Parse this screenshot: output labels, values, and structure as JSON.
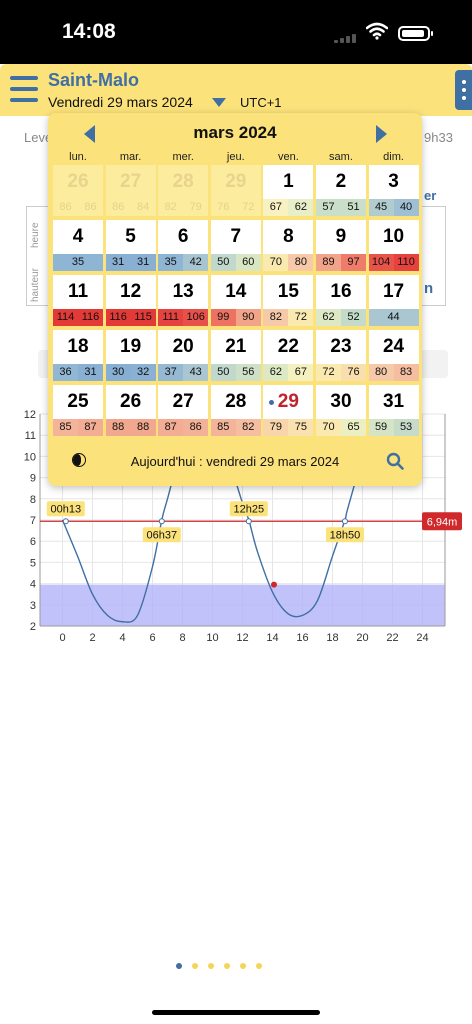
{
  "status": {
    "time": "14:08"
  },
  "header": {
    "city": "Saint-Malo",
    "date": "Vendredi 29 mars 2024",
    "utc": "UTC+1"
  },
  "background": {
    "lever": "Leve",
    "right_time": "9h33",
    "left_side_top": "heure",
    "left_side_bottom": "hauteur",
    "right_letter_top": "er",
    "right_letter_bottom": "n"
  },
  "calendar": {
    "month": "mars 2024",
    "weekdays": [
      "lun.",
      "mar.",
      "mer.",
      "jeu.",
      "ven.",
      "sam.",
      "dim."
    ],
    "footer": "Aujourd'hui : vendredi 29 mars 2024",
    "days": [
      {
        "n": "26",
        "c": [
          "86",
          "86"
        ],
        "cols": [
          "#fcec9e",
          "#fcec9e"
        ],
        "faded": true
      },
      {
        "n": "27",
        "c": [
          "86",
          "84"
        ],
        "cols": [
          "#fcec9e",
          "#fcec9e"
        ],
        "faded": true
      },
      {
        "n": "28",
        "c": [
          "82",
          "79"
        ],
        "cols": [
          "#fcec9e",
          "#fcec9e"
        ],
        "faded": true
      },
      {
        "n": "29",
        "c": [
          "76",
          "72"
        ],
        "cols": [
          "#fcec9e",
          "#fcec9e"
        ],
        "faded": true
      },
      {
        "n": "1",
        "c": [
          "67",
          "62"
        ],
        "cols": [
          "#f8f1c2",
          "#e8eec8"
        ]
      },
      {
        "n": "2",
        "c": [
          "57",
          "51"
        ],
        "cols": [
          "#c9dfc9",
          "#c9dfc9"
        ]
      },
      {
        "n": "3",
        "c": [
          "45",
          "40"
        ],
        "cols": [
          "#b1cccf",
          "#9fc0d4"
        ]
      },
      {
        "n": "4",
        "c": [
          "35",
          ""
        ],
        "cols": [
          "#8fb5d5",
          "#8fb5d5"
        ],
        "single": true
      },
      {
        "n": "5",
        "c": [
          "31",
          "31"
        ],
        "cols": [
          "#89afd3",
          "#89afd3"
        ]
      },
      {
        "n": "6",
        "c": [
          "35",
          "42"
        ],
        "cols": [
          "#8fb5d5",
          "#a7c5d1"
        ]
      },
      {
        "n": "7",
        "c": [
          "50",
          "60"
        ],
        "cols": [
          "#c1d9cc",
          "#d9e6c4"
        ]
      },
      {
        "n": "8",
        "c": [
          "70",
          "80"
        ],
        "cols": [
          "#fbeab0",
          "#f6c9a8"
        ]
      },
      {
        "n": "9",
        "c": [
          "89",
          "97"
        ],
        "cols": [
          "#f2a48a",
          "#ef7c6a"
        ]
      },
      {
        "n": "10",
        "c": [
          "104",
          "110"
        ],
        "cols": [
          "#e9544a",
          "#e6423f"
        ]
      },
      {
        "n": "11",
        "c": [
          "114",
          "116"
        ],
        "cols": [
          "#e33a38",
          "#e33a38"
        ]
      },
      {
        "n": "12",
        "c": [
          "116",
          "115"
        ],
        "cols": [
          "#e33a38",
          "#e33a38"
        ]
      },
      {
        "n": "13",
        "c": [
          "111",
          "106"
        ],
        "cols": [
          "#e6423f",
          "#e8504a"
        ]
      },
      {
        "n": "14",
        "c": [
          "99",
          "90"
        ],
        "cols": [
          "#ee7262",
          "#f2a48a"
        ]
      },
      {
        "n": "15",
        "c": [
          "82",
          "72"
        ],
        "cols": [
          "#f6c9a8",
          "#fbeab0"
        ]
      },
      {
        "n": "16",
        "c": [
          "62",
          "52"
        ],
        "cols": [
          "#dde8c4",
          "#c4dbca"
        ]
      },
      {
        "n": "17",
        "c": [
          "44",
          ""
        ],
        "cols": [
          "#aac7d1",
          "#aac7d1"
        ],
        "single": true
      },
      {
        "n": "18",
        "c": [
          "36",
          "31"
        ],
        "cols": [
          "#92b7d4",
          "#89afd3"
        ]
      },
      {
        "n": "19",
        "c": [
          "30",
          "32"
        ],
        "cols": [
          "#87aed3",
          "#8ab1d3"
        ]
      },
      {
        "n": "20",
        "c": [
          "37",
          "43"
        ],
        "cols": [
          "#96b9d3",
          "#a9c6d1"
        ]
      },
      {
        "n": "21",
        "c": [
          "50",
          "56"
        ],
        "cols": [
          "#c1d9cc",
          "#cfe0c8"
        ]
      },
      {
        "n": "22",
        "c": [
          "62",
          "67"
        ],
        "cols": [
          "#dde8c4",
          "#f4f0c0"
        ]
      },
      {
        "n": "23",
        "c": [
          "72",
          "76"
        ],
        "cols": [
          "#fbeab0",
          "#f9dfae"
        ]
      },
      {
        "n": "24",
        "c": [
          "80",
          "83"
        ],
        "cols": [
          "#f6c9a8",
          "#f5bea0"
        ]
      },
      {
        "n": "25",
        "c": [
          "85",
          "87"
        ],
        "cols": [
          "#f4b49a",
          "#f3ad95"
        ]
      },
      {
        "n": "26",
        "c": [
          "88",
          "88"
        ],
        "cols": [
          "#f2a88f",
          "#f2a88f"
        ]
      },
      {
        "n": "27",
        "c": [
          "87",
          "86"
        ],
        "cols": [
          "#f3ad95",
          "#f3b198"
        ]
      },
      {
        "n": "28",
        "c": [
          "85",
          "82"
        ],
        "cols": [
          "#f4b49a",
          "#f5bea0"
        ]
      },
      {
        "n": "29",
        "c": [
          "79",
          "75"
        ],
        "cols": [
          "#f8d5ab",
          "#f9e2af"
        ],
        "today": true
      },
      {
        "n": "30",
        "c": [
          "70",
          "65"
        ],
        "cols": [
          "#fbeab0",
          "#ecefc2"
        ]
      },
      {
        "n": "31",
        "c": [
          "59",
          "53"
        ],
        "cols": [
          "#d6e4c6",
          "#c6dcc9"
        ]
      }
    ]
  },
  "chart_data": {
    "type": "line",
    "x_ticks": [
      "0",
      "2",
      "4",
      "6",
      "8",
      "10",
      "12",
      "14",
      "16",
      "18",
      "20",
      "22",
      "24"
    ],
    "y_ticks": [
      "2",
      "3",
      "4",
      "5",
      "6",
      "7",
      "8",
      "9",
      "10",
      "11",
      "12"
    ],
    "xlim": [
      -1.5,
      25.5
    ],
    "ylim": [
      2,
      12
    ],
    "x": [
      0,
      1,
      2,
      3,
      4,
      5,
      6,
      6.62,
      7,
      8,
      9,
      10,
      11,
      12,
      12.42,
      13,
      14,
      15,
      16,
      17,
      18,
      18.83,
      19,
      20
    ],
    "y": [
      7.0,
      5.3,
      3.5,
      2.5,
      2.2,
      2.5,
      4.8,
      7.0,
      8.0,
      10.5,
      11.8,
      11.6,
      10.0,
      7.8,
      7.0,
      5.5,
      3.6,
      2.6,
      2.5,
      3.2,
      5.3,
      7.0,
      7.5,
      10.0
    ],
    "threshold": {
      "value": 6.94,
      "label": "6,94m"
    },
    "band": [
      2,
      3.95
    ],
    "current_point": [
      14.1,
      3.95
    ],
    "crossings": [
      {
        "label": "00h13",
        "x": 0.22
      },
      {
        "label": "06h37",
        "x": 6.62
      },
      {
        "label": "12h25",
        "x": 12.42
      },
      {
        "label": "18h50",
        "x": 18.83
      }
    ],
    "colors": {
      "line": "#3f6fa3",
      "threshold": "#d0292b",
      "band": "#b3b3fa",
      "label_bg": "#fbe27a"
    }
  },
  "pager": {
    "count": 6,
    "active": 0
  }
}
